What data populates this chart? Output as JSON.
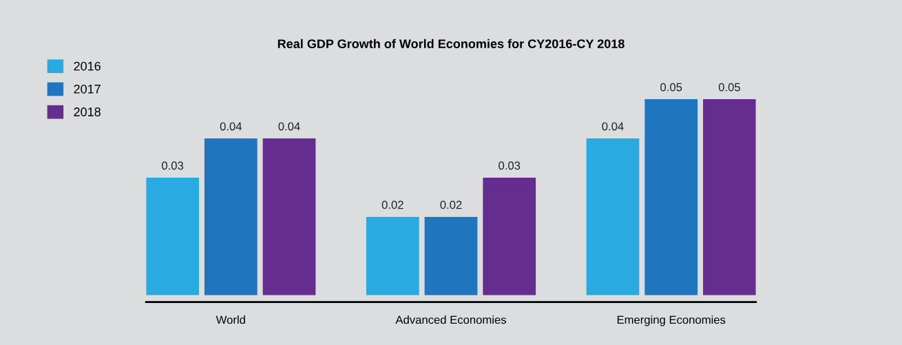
{
  "chart_data": {
    "type": "bar",
    "title": "Real GDP Growth of World Economies for CY2016-CY 2018",
    "categories": [
      "World",
      "Advanced Economies",
      "Emerging Economies"
    ],
    "series": [
      {
        "name": "2016",
        "color": "#29abe2",
        "values": [
          0.03,
          0.02,
          0.04
        ]
      },
      {
        "name": "2017",
        "color": "#1f75be",
        "values": [
          0.04,
          0.02,
          0.05
        ]
      },
      {
        "name": "2018",
        "color": "#662d91",
        "values": [
          0.04,
          0.03,
          0.05
        ]
      }
    ],
    "tick_labels": "x",
    "data_labels": true,
    "legend": "top left",
    "grid": false
  }
}
